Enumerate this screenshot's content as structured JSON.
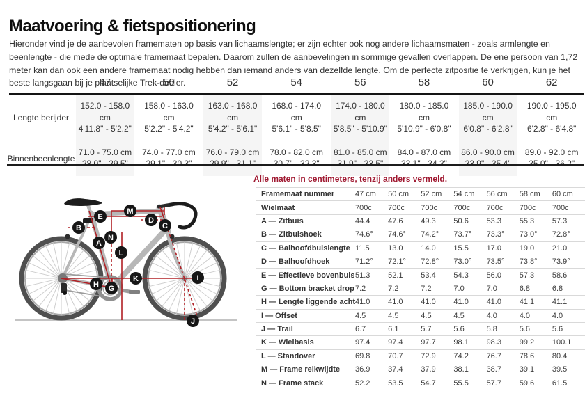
{
  "page": {
    "title": "Maatvoering & fietspositionering",
    "intro": "Hieronder vind je de aanbevolen framematen op basis van lichaamslengte; er zijn echter ook nog andere lichaamsmaten - zoals armlengte en beenlengte - die mede de optimale framemaat bepalen. Daarom zullen de aanbevelingen in sommige gevallen overlappen. De ene persoon van 1,72 meter kan dan ook een andere framemaat nodig hebben dan iemand anders van dezelfde lengte. Om de perfecte zitpositie te verkrijgen, kun je het beste langsgaan bij je plaatselijke Trek-dealer."
  },
  "size_table": {
    "columns": [
      "47",
      "50",
      "52",
      "54",
      "56",
      "58",
      "60",
      "62"
    ],
    "striped_columns": [
      0,
      2,
      4,
      6
    ],
    "rows": [
      {
        "label": "Lengte berijder",
        "cells": [
          {
            "cm": "152.0 - 158.0 cm",
            "in": "4'11.8\" - 5'2.2\""
          },
          {
            "cm": "158.0 - 163.0 cm",
            "in": "5'2.2\" - 5'4.2\""
          },
          {
            "cm": "163.0 - 168.0 cm",
            "in": "5'4.2\" - 5'6.1\""
          },
          {
            "cm": "168.0 - 174.0 cm",
            "in": "5'6.1\" - 5'8.5\""
          },
          {
            "cm": "174.0 - 180.0 cm",
            "in": "5'8.5\" - 5'10.9\""
          },
          {
            "cm": "180.0 - 185.0 cm",
            "in": "5'10.9\" - 6'0.8\""
          },
          {
            "cm": "185.0 - 190.0 cm",
            "in": "6'0.8\" - 6'2.8\""
          },
          {
            "cm": "190.0 - 195.0 cm",
            "in": "6'2.8\" - 6'4.8\""
          }
        ]
      },
      {
        "label": "Binnenbeenlengte",
        "cells": [
          {
            "cm": "71.0 - 75.0 cm",
            "in": "28.0\" - 29.5\""
          },
          {
            "cm": "74.0 - 77.0 cm",
            "in": "29.1\" - 30.3\""
          },
          {
            "cm": "76.0 - 79.0 cm",
            "in": "29.9\" - 31.1\""
          },
          {
            "cm": "78.0 - 82.0 cm",
            "in": "30.7\" - 32.3\""
          },
          {
            "cm": "81.0 - 85.0 cm",
            "in": "31.9\" - 33.5\""
          },
          {
            "cm": "84.0 - 87.0 cm",
            "in": "33.1\" - 34.3\""
          },
          {
            "cm": "86.0 - 90.0 cm",
            "in": "33.9\" - 35.4\""
          },
          {
            "cm": "89.0 - 92.0 cm",
            "in": "35.0\" - 36.2\""
          }
        ]
      }
    ]
  },
  "geometry": {
    "note": "Alle maten in centimeters, tenzij anders vermeld.",
    "note_color": "#a01931",
    "rows": [
      {
        "label": "Framemaat nummer",
        "values": [
          "47 cm",
          "50 cm",
          "52 cm",
          "54 cm",
          "56 cm",
          "58 cm",
          "60 cm"
        ]
      },
      {
        "label": "Wielmaat",
        "values": [
          "700c",
          "700c",
          "700c",
          "700c",
          "700c",
          "700c",
          "700c"
        ]
      },
      {
        "label": "A — Zitbuis",
        "values": [
          "44.4",
          "47.6",
          "49.3",
          "50.6",
          "53.3",
          "55.3",
          "57.3"
        ]
      },
      {
        "label": "B — Zitbuishoek",
        "values": [
          "74.6°",
          "74.6°",
          "74.2°",
          "73.7°",
          "73.3°",
          "73.0°",
          "72.8°"
        ]
      },
      {
        "label": "C — Balhoofdbuislengte",
        "values": [
          "11.5",
          "13.0",
          "14.0",
          "15.5",
          "17.0",
          "19.0",
          "21.0"
        ]
      },
      {
        "label": "D — Balhoofdhoek",
        "values": [
          "71.2°",
          "72.1°",
          "72.8°",
          "73.0°",
          "73.5°",
          "73.8°",
          "73.9°"
        ]
      },
      {
        "label": "E — Effectieve bovenbuislengte",
        "values": [
          "51.3",
          "52.1",
          "53.4",
          "54.3",
          "56.0",
          "57.3",
          "58.6"
        ]
      },
      {
        "label": "G — Bottom bracket drop",
        "values": [
          "7.2",
          "7.2",
          "7.2",
          "7.0",
          "7.0",
          "6.8",
          "6.8"
        ]
      },
      {
        "label": "H — Lengte liggende achtervork",
        "values": [
          "41.0",
          "41.0",
          "41.0",
          "41.0",
          "41.0",
          "41.1",
          "41.1"
        ]
      },
      {
        "label": "I — Offset",
        "values": [
          "4.5",
          "4.5",
          "4.5",
          "4.5",
          "4.0",
          "4.0",
          "4.0"
        ]
      },
      {
        "label": "J — Trail",
        "values": [
          "6.7",
          "6.1",
          "5.7",
          "5.6",
          "5.8",
          "5.6",
          "5.6"
        ]
      },
      {
        "label": "K — Wielbasis",
        "values": [
          "97.4",
          "97.4",
          "97.7",
          "98.1",
          "98.3",
          "99.2",
          "100.1"
        ]
      },
      {
        "label": "L — Standover",
        "values": [
          "69.8",
          "70.7",
          "72.9",
          "74.2",
          "76.7",
          "78.6",
          "80.4"
        ]
      },
      {
        "label": "M — Frame reikwijdte",
        "values": [
          "36.9",
          "37.4",
          "37.9",
          "38.1",
          "38.7",
          "39.1",
          "39.5"
        ]
      },
      {
        "label": "N — Frame stack",
        "values": [
          "52.2",
          "53.5",
          "54.7",
          "55.5",
          "57.7",
          "59.6",
          "61.5"
        ]
      }
    ]
  },
  "diagram": {
    "labels": [
      "A",
      "B",
      "C",
      "D",
      "E",
      "G",
      "H",
      "I",
      "J",
      "K",
      "L",
      "M",
      "N"
    ],
    "measure_line_color": "#b02025",
    "frame_color": "#b7b7b7",
    "label_bg_color": "#161616"
  }
}
